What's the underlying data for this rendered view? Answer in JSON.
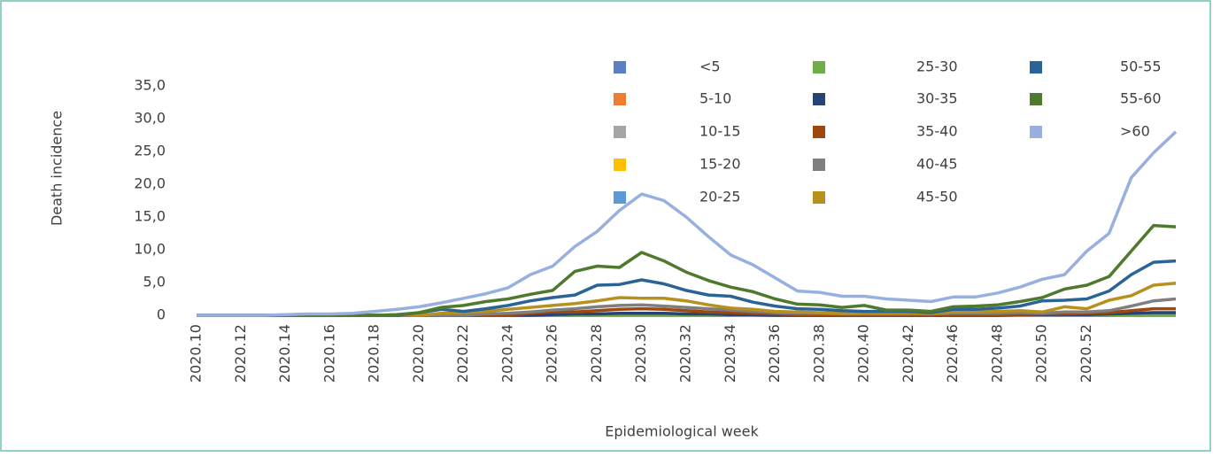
{
  "chart_data": {
    "type": "line",
    "y_label": "Death incidence",
    "x_label": "Epidemiological week",
    "categories": [
      "2020.10",
      null,
      "2020.12",
      null,
      "2020.14",
      null,
      "2020.16",
      null,
      "2020.18",
      null,
      "2020.20",
      null,
      "2020.22",
      null,
      "2020.24",
      null,
      "2020.26",
      null,
      "2020.28",
      null,
      "2020.30",
      null,
      "2020.32",
      null,
      "2020.34",
      null,
      "2020.36",
      null,
      "2020.38",
      null,
      "2020.40",
      null,
      "2020.42",
      null,
      "2020.46",
      null,
      "2020.48",
      null,
      "2020.50",
      null,
      "2020.52",
      null,
      null,
      null,
      null
    ],
    "ylim": [
      0,
      35
    ],
    "yticks": [
      0,
      {
        "value": 5,
        "label": "5,0"
      },
      {
        "value": 10,
        "label": "10,0"
      },
      {
        "value": 15,
        "label": "15,0"
      },
      {
        "value": 20,
        "label": "20,0"
      },
      {
        "value": 25,
        "label": "25,0"
      },
      {
        "value": 30,
        "label": "30,0"
      },
      {
        "value": 35,
        "label": "35,0"
      }
    ],
    "grid": false,
    "series": [
      {
        "name": "<5",
        "color": "#5b7fc7",
        "values": [
          0,
          0,
          0,
          0,
          0,
          0,
          0,
          0,
          0,
          0,
          0,
          0,
          0,
          0,
          0,
          0,
          0,
          0,
          0,
          0,
          0,
          0,
          0,
          0,
          0,
          0,
          0,
          0,
          0,
          0,
          0,
          0,
          0,
          0,
          0,
          0,
          0,
          0,
          0,
          0,
          0,
          0,
          0,
          0,
          0
        ]
      },
      {
        "name": "5-10",
        "color": "#ed7d31",
        "values": [
          0,
          0,
          0,
          0,
          0,
          0,
          0,
          0,
          0,
          0,
          0,
          0,
          0,
          0,
          0,
          0,
          0,
          0,
          0,
          0,
          0,
          0,
          0,
          0,
          0,
          0,
          0,
          0,
          0,
          0,
          0,
          0,
          0,
          0,
          0,
          0,
          0,
          0,
          0,
          0,
          0,
          0,
          0,
          0,
          0
        ]
      },
      {
        "name": "10-15",
        "color": "#a5a5a5",
        "values": [
          0,
          0,
          0,
          0,
          0,
          0,
          0,
          0,
          0,
          0,
          0,
          0,
          0,
          0,
          0,
          0,
          0,
          0,
          0,
          0,
          0,
          0,
          0,
          0,
          0,
          0,
          0,
          0,
          0,
          0,
          0,
          0,
          0,
          0,
          0,
          0,
          0,
          0,
          0,
          0,
          0,
          0,
          0,
          0,
          0
        ]
      },
      {
        "name": "15-20",
        "color": "#ffc000",
        "values": [
          0,
          0,
          0,
          0,
          0,
          0,
          0,
          0,
          0,
          0,
          0,
          0,
          0,
          0,
          0,
          0,
          0,
          0,
          0,
          0,
          0,
          0,
          0,
          0,
          0,
          0,
          0,
          0,
          0,
          0,
          0,
          0,
          0,
          0,
          0,
          0,
          0,
          0,
          0,
          0,
          0,
          0,
          0,
          0.1,
          0.1
        ]
      },
      {
        "name": "20-25",
        "color": "#5b9bd5",
        "values": [
          0,
          0,
          0,
          0,
          0,
          0,
          0,
          0,
          0,
          0,
          0,
          0,
          0,
          0,
          0,
          0,
          0,
          0,
          0,
          0,
          0,
          0,
          0,
          0,
          0,
          0,
          0,
          0,
          0,
          0,
          0,
          0,
          0,
          0,
          0,
          0,
          0,
          0,
          0,
          0,
          0,
          0,
          0,
          0,
          0
        ]
      },
      {
        "name": "25-30",
        "color": "#70ad47",
        "values": [
          0,
          0,
          0,
          0,
          0,
          0,
          0,
          0,
          0,
          0,
          0,
          0,
          0,
          0,
          0,
          0,
          0,
          0,
          0,
          0.1,
          0.1,
          0.1,
          0,
          0,
          0,
          0,
          0,
          0,
          0,
          0,
          0,
          0,
          0,
          0,
          0,
          0,
          0,
          0,
          0,
          0,
          0,
          0,
          0,
          0,
          0
        ]
      },
      {
        "name": "30-35",
        "color": "#264478",
        "values": [
          0,
          0,
          0,
          0,
          0,
          0,
          0,
          0,
          0,
          0,
          0,
          0,
          0,
          0,
          0,
          0,
          0.1,
          0.2,
          0.2,
          0.3,
          0.3,
          0.3,
          0.2,
          0.2,
          0.1,
          0.1,
          0,
          0,
          0,
          0,
          0,
          0,
          0,
          0,
          0,
          0,
          0,
          0.1,
          0.1,
          0.1,
          0.1,
          0.2,
          0.3,
          0.4,
          0.4
        ]
      },
      {
        "name": "35-40",
        "color": "#9e480e",
        "values": [
          0,
          0,
          0,
          0,
          0,
          0,
          0,
          0,
          0,
          0,
          0,
          0,
          0,
          0,
          0,
          0.3,
          0.5,
          0.5,
          0.7,
          0.9,
          1.0,
          0.9,
          0.7,
          0.5,
          0.4,
          0.3,
          0.2,
          0.1,
          0.1,
          0.1,
          0.1,
          0.1,
          0.1,
          0.1,
          0.1,
          0.1,
          0.1,
          0.1,
          0.2,
          0.2,
          0.3,
          0.4,
          0.7,
          1.0,
          1.0
        ]
      },
      {
        "name": "40-45",
        "color": "#7f7f7f",
        "values": [
          0,
          0,
          0,
          0,
          0,
          0,
          0,
          0,
          0,
          0,
          0,
          0,
          0,
          0.2,
          0.3,
          0.5,
          0.8,
          1.0,
          1.3,
          1.5,
          1.6,
          1.4,
          1.2,
          1.0,
          0.8,
          0.6,
          0.4,
          0.3,
          0.3,
          0.2,
          0.2,
          0.2,
          0.2,
          0.2,
          0.3,
          0.3,
          0.3,
          0.4,
          0.3,
          0.5,
          0.5,
          0.7,
          1.4,
          2.2,
          2.5
        ]
      },
      {
        "name": "45-50",
        "color": "#b8901e",
        "values": [
          0,
          0,
          0,
          0,
          0,
          0,
          0,
          0,
          0,
          0,
          0,
          0.3,
          0.4,
          0.6,
          0.9,
          1.2,
          1.5,
          1.8,
          2.2,
          2.7,
          2.6,
          2.6,
          2.2,
          1.6,
          1.1,
          0.9,
          0.6,
          0.5,
          0.4,
          0.3,
          0.3,
          0.3,
          0.4,
          0.3,
          0.5,
          0.5,
          0.6,
          0.7,
          0.5,
          1.3,
          1.0,
          2.3,
          3.0,
          4.6,
          4.9
        ]
      },
      {
        "name": "50-55",
        "color": "#2a6496",
        "values": [
          0,
          0,
          0,
          0,
          0,
          0,
          0,
          0,
          0,
          0,
          0.4,
          0.9,
          0.6,
          1.0,
          1.5,
          2.2,
          2.7,
          3.1,
          4.6,
          4.7,
          5.4,
          4.8,
          3.8,
          3.1,
          2.9,
          2.0,
          1.4,
          1.0,
          0.9,
          0.7,
          0.6,
          0.6,
          0.6,
          0.4,
          0.9,
          0.9,
          1.1,
          1.4,
          2.2,
          2.3,
          2.5,
          3.7,
          6.2,
          8.1,
          8.3
        ]
      },
      {
        "name": "55-60",
        "color": "#4f7a2e",
        "values": [
          0,
          0,
          0,
          0,
          0,
          0,
          0,
          0,
          0,
          0.1,
          0.4,
          1.2,
          1.5,
          2.1,
          2.5,
          3.2,
          3.8,
          6.7,
          7.5,
          7.3,
          9.6,
          8.3,
          6.6,
          5.3,
          4.3,
          3.6,
          2.5,
          1.7,
          1.6,
          1.2,
          1.5,
          0.8,
          0.8,
          0.6,
          1.3,
          1.4,
          1.6,
          2.1,
          2.7,
          4.0,
          4.6,
          5.9,
          9.8,
          13.7,
          13.5
        ]
      },
      {
        "name": ">60",
        "color": "#98b0e0",
        "values": [
          0,
          0,
          0,
          0,
          0.1,
          0.2,
          0.2,
          0.3,
          0.6,
          0.9,
          1.3,
          1.9,
          2.6,
          3.3,
          4.2,
          6.2,
          7.5,
          10.5,
          12.8,
          16,
          18.5,
          17.5,
          15,
          12,
          9.2,
          7.7,
          5.7,
          3.7,
          3.5,
          2.9,
          2.9,
          2.5,
          2.3,
          2.1,
          2.8,
          2.8,
          3.4,
          4.3,
          5.5,
          6.2,
          9.8,
          12.5,
          21,
          24.8,
          28
        ]
      }
    ]
  }
}
